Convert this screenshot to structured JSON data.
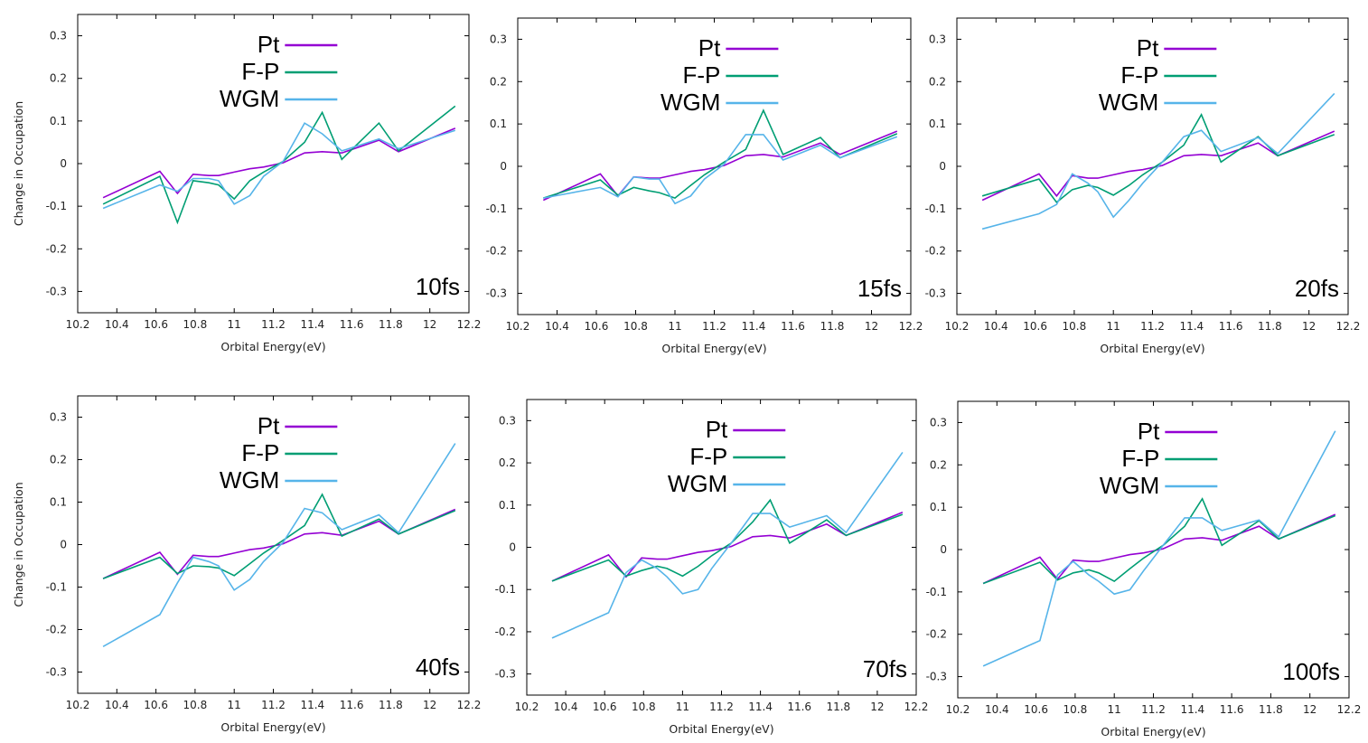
{
  "chart_data": [
    {
      "type": "line",
      "annotation": "10fs",
      "xlabel": "Orbital Energy(eV)",
      "ylabel": "Change in Occupation",
      "xlim": [
        10.2,
        12.2
      ],
      "ylim": [
        -0.35,
        0.35
      ],
      "xticks": [
        "10.2",
        "10.4",
        "10.6",
        "10.8",
        "11",
        "11.2",
        "11.4",
        "11.6",
        "11.8",
        "12",
        "12.2"
      ],
      "yticks": [
        "0.3",
        "0.2",
        "0.1",
        "0",
        "-0.1",
        "-0.2",
        "-0.3"
      ],
      "legend": "top-center",
      "grid": false,
      "series": [
        {
          "name": "Pt",
          "color": "#9400d3",
          "x": [
            10.33,
            10.62,
            10.71,
            10.79,
            10.87,
            10.92,
            11.0,
            11.08,
            11.15,
            11.25,
            11.36,
            11.45,
            11.55,
            11.74,
            11.84,
            12.13
          ],
          "y": [
            -0.08,
            -0.018,
            -0.07,
            -0.025,
            -0.028,
            -0.028,
            -0.02,
            -0.012,
            -0.008,
            0.002,
            0.025,
            0.028,
            0.025,
            0.055,
            0.028,
            0.083
          ]
        },
        {
          "name": "F-P",
          "color": "#009e73",
          "x": [
            10.33,
            10.62,
            10.71,
            10.79,
            10.87,
            10.92,
            11.0,
            11.08,
            11.15,
            11.25,
            11.36,
            11.45,
            11.55,
            11.74,
            11.84,
            12.13
          ],
          "y": [
            -0.095,
            -0.03,
            -0.138,
            -0.04,
            -0.045,
            -0.05,
            -0.083,
            -0.04,
            -0.02,
            0.005,
            0.05,
            0.12,
            0.01,
            0.095,
            0.03,
            0.135
          ]
        },
        {
          "name": "WGM",
          "color": "#56b4e9",
          "x": [
            10.33,
            10.62,
            10.71,
            10.79,
            10.87,
            10.92,
            11.0,
            11.08,
            11.15,
            11.25,
            11.36,
            11.45,
            11.55,
            11.74,
            11.84,
            12.13
          ],
          "y": [
            -0.105,
            -0.05,
            -0.065,
            -0.035,
            -0.035,
            -0.04,
            -0.095,
            -0.075,
            -0.03,
            0.005,
            0.095,
            0.07,
            0.03,
            0.058,
            0.035,
            0.078
          ]
        }
      ]
    },
    {
      "type": "line",
      "annotation": "15fs",
      "xlabel": "Orbital Energy(eV)",
      "ylabel": "",
      "xlim": [
        10.2,
        12.2
      ],
      "ylim": [
        -0.35,
        0.35
      ],
      "xticks": [
        "10.2",
        "10.4",
        "10.6",
        "10.8",
        "11",
        "11.2",
        "11.4",
        "11.6",
        "11.8",
        "12",
        "12.2"
      ],
      "yticks": [
        "0.3",
        "0.2",
        "0.1",
        "0",
        "-0.1",
        "-0.2",
        "-0.3"
      ],
      "legend": "top-center",
      "grid": false,
      "series": [
        {
          "name": "Pt",
          "color": "#9400d3",
          "x": [
            10.33,
            10.62,
            10.71,
            10.79,
            10.87,
            10.92,
            11.0,
            11.08,
            11.15,
            11.25,
            11.36,
            11.45,
            11.55,
            11.74,
            11.84,
            12.13
          ],
          "y": [
            -0.08,
            -0.018,
            -0.07,
            -0.025,
            -0.028,
            -0.028,
            -0.02,
            -0.012,
            -0.008,
            0.002,
            0.025,
            0.028,
            0.022,
            0.055,
            0.028,
            0.083
          ]
        },
        {
          "name": "F-P",
          "color": "#009e73",
          "x": [
            10.33,
            10.62,
            10.71,
            10.79,
            10.87,
            10.92,
            11.0,
            11.08,
            11.15,
            11.25,
            11.36,
            11.45,
            11.55,
            11.74,
            11.84,
            12.13
          ],
          "y": [
            -0.075,
            -0.032,
            -0.068,
            -0.05,
            -0.058,
            -0.062,
            -0.075,
            -0.045,
            -0.02,
            0.01,
            0.04,
            0.132,
            0.028,
            0.068,
            0.02,
            0.077
          ]
        },
        {
          "name": "WGM",
          "color": "#56b4e9",
          "x": [
            10.33,
            10.62,
            10.71,
            10.79,
            10.87,
            10.92,
            11.0,
            11.08,
            11.15,
            11.25,
            11.36,
            11.45,
            11.55,
            11.74,
            11.84,
            12.13
          ],
          "y": [
            -0.075,
            -0.05,
            -0.072,
            -0.025,
            -0.03,
            -0.03,
            -0.088,
            -0.07,
            -0.03,
            0.005,
            0.075,
            0.075,
            0.015,
            0.05,
            0.02,
            0.07
          ]
        }
      ]
    },
    {
      "type": "line",
      "annotation": "20fs",
      "xlabel": "Orbital Energy(eV)",
      "ylabel": "",
      "xlim": [
        10.2,
        12.2
      ],
      "ylim": [
        -0.35,
        0.35
      ],
      "xticks": [
        "10.2",
        "10.4",
        "10.6",
        "10.8",
        "11",
        "11.2",
        "11.4",
        "11.6",
        "11.8",
        "12",
        "12.2"
      ],
      "yticks": [
        "0.3",
        "0.2",
        "0.1",
        "0",
        "-0.1",
        "-0.2",
        "-0.3"
      ],
      "legend": "top-center",
      "grid": false,
      "series": [
        {
          "name": "Pt",
          "color": "#9400d3",
          "x": [
            10.33,
            10.62,
            10.71,
            10.79,
            10.87,
            10.92,
            11.0,
            11.08,
            11.15,
            11.25,
            11.36,
            11.45,
            11.55,
            11.74,
            11.84,
            12.13
          ],
          "y": [
            -0.08,
            -0.018,
            -0.07,
            -0.022,
            -0.028,
            -0.028,
            -0.02,
            -0.012,
            -0.008,
            0.002,
            0.025,
            0.028,
            0.025,
            0.055,
            0.025,
            0.083
          ]
        },
        {
          "name": "F-P",
          "color": "#009e73",
          "x": [
            10.33,
            10.62,
            10.71,
            10.79,
            10.87,
            10.92,
            11.0,
            11.08,
            11.15,
            11.25,
            11.36,
            11.45,
            11.55,
            11.74,
            11.84,
            12.13
          ],
          "y": [
            -0.07,
            -0.03,
            -0.085,
            -0.055,
            -0.045,
            -0.05,
            -0.068,
            -0.045,
            -0.02,
            0.01,
            0.05,
            0.122,
            0.01,
            0.07,
            0.025,
            0.075
          ]
        },
        {
          "name": "WGM",
          "color": "#56b4e9",
          "x": [
            10.33,
            10.62,
            10.71,
            10.79,
            10.87,
            10.92,
            11.0,
            11.08,
            11.15,
            11.25,
            11.36,
            11.45,
            11.55,
            11.74,
            11.84,
            12.13
          ],
          "y": [
            -0.148,
            -0.112,
            -0.09,
            -0.018,
            -0.04,
            -0.06,
            -0.12,
            -0.08,
            -0.04,
            0.01,
            0.07,
            0.085,
            0.035,
            0.068,
            0.03,
            0.172
          ]
        }
      ]
    },
    {
      "type": "line",
      "annotation": "40fs",
      "xlabel": "Orbital Energy(eV)",
      "ylabel": "Change in Occupation",
      "xlim": [
        10.2,
        12.2
      ],
      "ylim": [
        -0.35,
        0.35
      ],
      "xticks": [
        "10.2",
        "10.4",
        "10.6",
        "10.8",
        "11",
        "11.2",
        "11.4",
        "11.6",
        "11.8",
        "12",
        "12.2"
      ],
      "yticks": [
        "0.3",
        "0.2",
        "0.1",
        "0",
        "-0.1",
        "-0.2",
        "-0.3"
      ],
      "legend": "top-center",
      "grid": false,
      "series": [
        {
          "name": "Pt",
          "color": "#9400d3",
          "x": [
            10.33,
            10.62,
            10.71,
            10.79,
            10.87,
            10.92,
            11.0,
            11.08,
            11.15,
            11.25,
            11.36,
            11.45,
            11.55,
            11.74,
            11.84,
            12.13
          ],
          "y": [
            -0.08,
            -0.018,
            -0.07,
            -0.025,
            -0.028,
            -0.028,
            -0.02,
            -0.012,
            -0.008,
            0.002,
            0.025,
            0.028,
            0.022,
            0.055,
            0.025,
            0.083
          ]
        },
        {
          "name": "F-P",
          "color": "#009e73",
          "x": [
            10.33,
            10.62,
            10.71,
            10.79,
            10.87,
            10.92,
            11.0,
            11.08,
            11.15,
            11.25,
            11.36,
            11.45,
            11.55,
            11.74,
            11.84,
            12.13
          ],
          "y": [
            -0.08,
            -0.03,
            -0.068,
            -0.05,
            -0.052,
            -0.055,
            -0.073,
            -0.045,
            -0.02,
            0.01,
            0.045,
            0.118,
            0.02,
            0.06,
            0.025,
            0.08
          ]
        },
        {
          "name": "WGM",
          "color": "#56b4e9",
          "x": [
            10.33,
            10.62,
            10.71,
            10.79,
            10.87,
            10.92,
            11.0,
            11.08,
            11.15,
            11.25,
            11.36,
            11.45,
            11.55,
            11.74,
            11.84,
            12.13
          ],
          "y": [
            -0.24,
            -0.165,
            -0.09,
            -0.03,
            -0.04,
            -0.05,
            -0.107,
            -0.082,
            -0.04,
            0.005,
            0.085,
            0.075,
            0.035,
            0.07,
            0.028,
            0.238
          ]
        }
      ]
    },
    {
      "type": "line",
      "annotation": "70fs",
      "xlabel": "Orbital Energy(eV)",
      "ylabel": "",
      "xlim": [
        10.2,
        12.2
      ],
      "ylim": [
        -0.35,
        0.35
      ],
      "xticks": [
        "10.2",
        "10.4",
        "10.6",
        "10.8",
        "11",
        "11.2",
        "11.4",
        "11.6",
        "11.8",
        "12",
        "12.2"
      ],
      "yticks": [
        "0.3",
        "0.2",
        "0.1",
        "0",
        "-0.1",
        "-0.2",
        "-0.3"
      ],
      "legend": "top-center",
      "grid": false,
      "series": [
        {
          "name": "Pt",
          "color": "#9400d3",
          "x": [
            10.33,
            10.62,
            10.71,
            10.79,
            10.87,
            10.92,
            11.0,
            11.08,
            11.15,
            11.25,
            11.36,
            11.45,
            11.55,
            11.74,
            11.84,
            12.13
          ],
          "y": [
            -0.08,
            -0.018,
            -0.07,
            -0.025,
            -0.028,
            -0.028,
            -0.02,
            -0.012,
            -0.008,
            0.002,
            0.025,
            0.028,
            0.022,
            0.055,
            0.028,
            0.083
          ]
        },
        {
          "name": "F-P",
          "color": "#009e73",
          "x": [
            10.33,
            10.62,
            10.71,
            10.79,
            10.87,
            10.92,
            11.0,
            11.08,
            11.15,
            11.25,
            11.36,
            11.45,
            11.55,
            11.74,
            11.84,
            12.13
          ],
          "y": [
            -0.08,
            -0.03,
            -0.068,
            -0.055,
            -0.045,
            -0.05,
            -0.068,
            -0.045,
            -0.02,
            0.01,
            0.06,
            0.112,
            0.01,
            0.065,
            0.028,
            0.078
          ]
        },
        {
          "name": "WGM",
          "color": "#56b4e9",
          "x": [
            10.33,
            10.62,
            10.71,
            10.79,
            10.87,
            10.92,
            11.0,
            11.08,
            11.15,
            11.25,
            11.36,
            11.45,
            11.55,
            11.74,
            11.84,
            12.13
          ],
          "y": [
            -0.215,
            -0.155,
            -0.06,
            -0.03,
            -0.05,
            -0.07,
            -0.11,
            -0.1,
            -0.05,
            0.01,
            0.08,
            0.08,
            0.048,
            0.075,
            0.035,
            0.225
          ]
        }
      ]
    },
    {
      "type": "line",
      "annotation": "100fs",
      "xlabel": "Orbital Energy(eV)",
      "ylabel": "",
      "xlim": [
        10.2,
        12.2
      ],
      "ylim": [
        -0.35,
        0.35
      ],
      "xticks": [
        "10.2",
        "10.4",
        "10.6",
        "10.8",
        "11",
        "11.2",
        "11.4",
        "11.6",
        "11.8",
        "12",
        "12.2"
      ],
      "yticks": [
        "0.3",
        "0.2",
        "0.1",
        "0",
        "-0.1",
        "-0.2",
        "-0.3"
      ],
      "legend": "top-center",
      "grid": false,
      "series": [
        {
          "name": "Pt",
          "color": "#9400d3",
          "x": [
            10.33,
            10.62,
            10.71,
            10.79,
            10.87,
            10.92,
            11.0,
            11.08,
            11.15,
            11.25,
            11.36,
            11.45,
            11.55,
            11.74,
            11.84,
            12.13
          ],
          "y": [
            -0.08,
            -0.018,
            -0.07,
            -0.025,
            -0.028,
            -0.028,
            -0.02,
            -0.012,
            -0.008,
            0.002,
            0.025,
            0.028,
            0.022,
            0.055,
            0.025,
            0.083
          ]
        },
        {
          "name": "F-P",
          "color": "#009e73",
          "x": [
            10.33,
            10.62,
            10.71,
            10.79,
            10.87,
            10.92,
            11.0,
            11.08,
            11.15,
            11.25,
            11.36,
            11.45,
            11.55,
            11.74,
            11.84,
            12.13
          ],
          "y": [
            -0.08,
            -0.03,
            -0.072,
            -0.055,
            -0.048,
            -0.055,
            -0.075,
            -0.045,
            -0.02,
            0.01,
            0.055,
            0.12,
            0.01,
            0.068,
            0.025,
            0.08
          ]
        },
        {
          "name": "WGM",
          "color": "#56b4e9",
          "x": [
            10.33,
            10.62,
            10.71,
            10.79,
            10.87,
            10.92,
            11.0,
            11.08,
            11.15,
            11.25,
            11.36,
            11.45,
            11.55,
            11.74,
            11.84,
            12.13
          ],
          "y": [
            -0.275,
            -0.215,
            -0.06,
            -0.028,
            -0.06,
            -0.075,
            -0.105,
            -0.095,
            -0.05,
            0.01,
            0.075,
            0.075,
            0.045,
            0.07,
            0.03,
            0.28
          ]
        }
      ]
    }
  ]
}
